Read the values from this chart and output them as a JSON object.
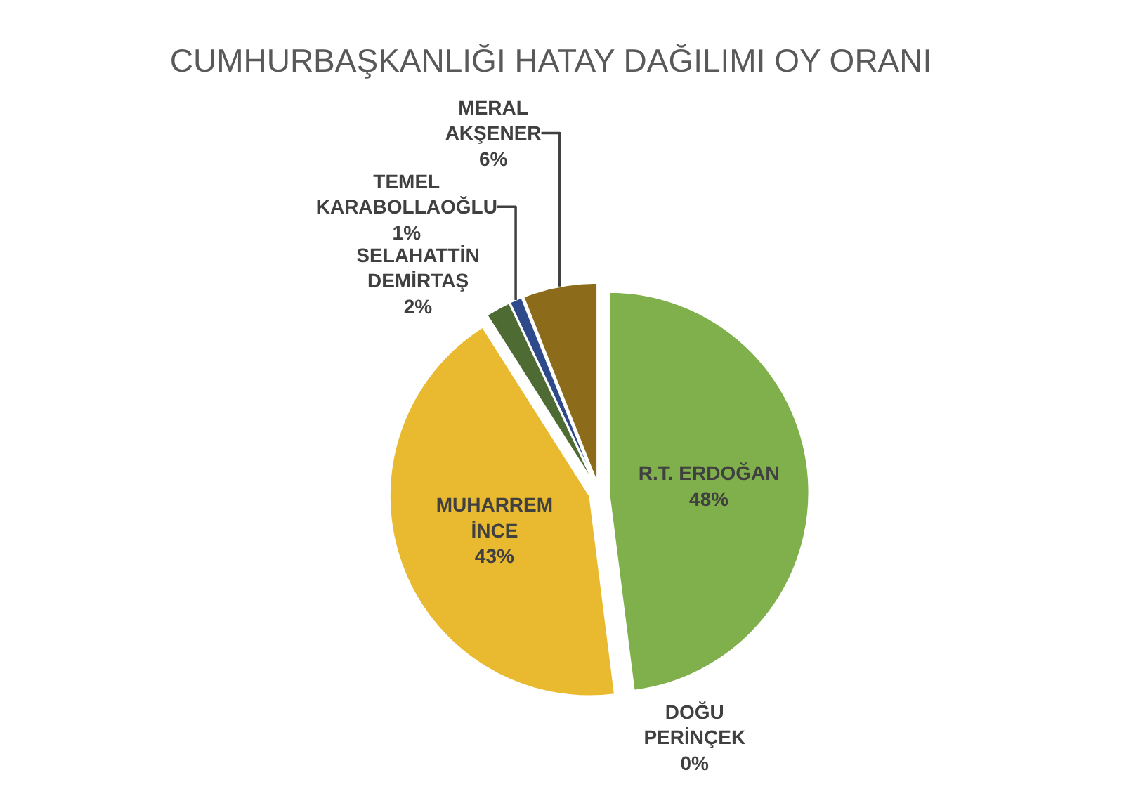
{
  "chart_data": {
    "type": "pie",
    "title": "CUMHURBAŞKANLIĞI HATAY DAĞILIMI OY ORANI",
    "categories": [
      "R.T. ERDOĞAN",
      "DOĞU PERİNÇEK",
      "MUHARREM İNCE",
      "SELAHATTİN DEMİRTAŞ",
      "TEMEL KARABOLLAOĞLU",
      "MERAL AKŞENER"
    ],
    "values": [
      48,
      0,
      43,
      2,
      1,
      6
    ],
    "value_labels": [
      "48%",
      "0%",
      "43%",
      "2%",
      "1%",
      "6%"
    ],
    "colors": [
      "#80b04c",
      "#1f3060",
      "#e9b92f",
      "#4e6b33",
      "#2e4a8a",
      "#8c6b1a"
    ],
    "legend": false
  }
}
